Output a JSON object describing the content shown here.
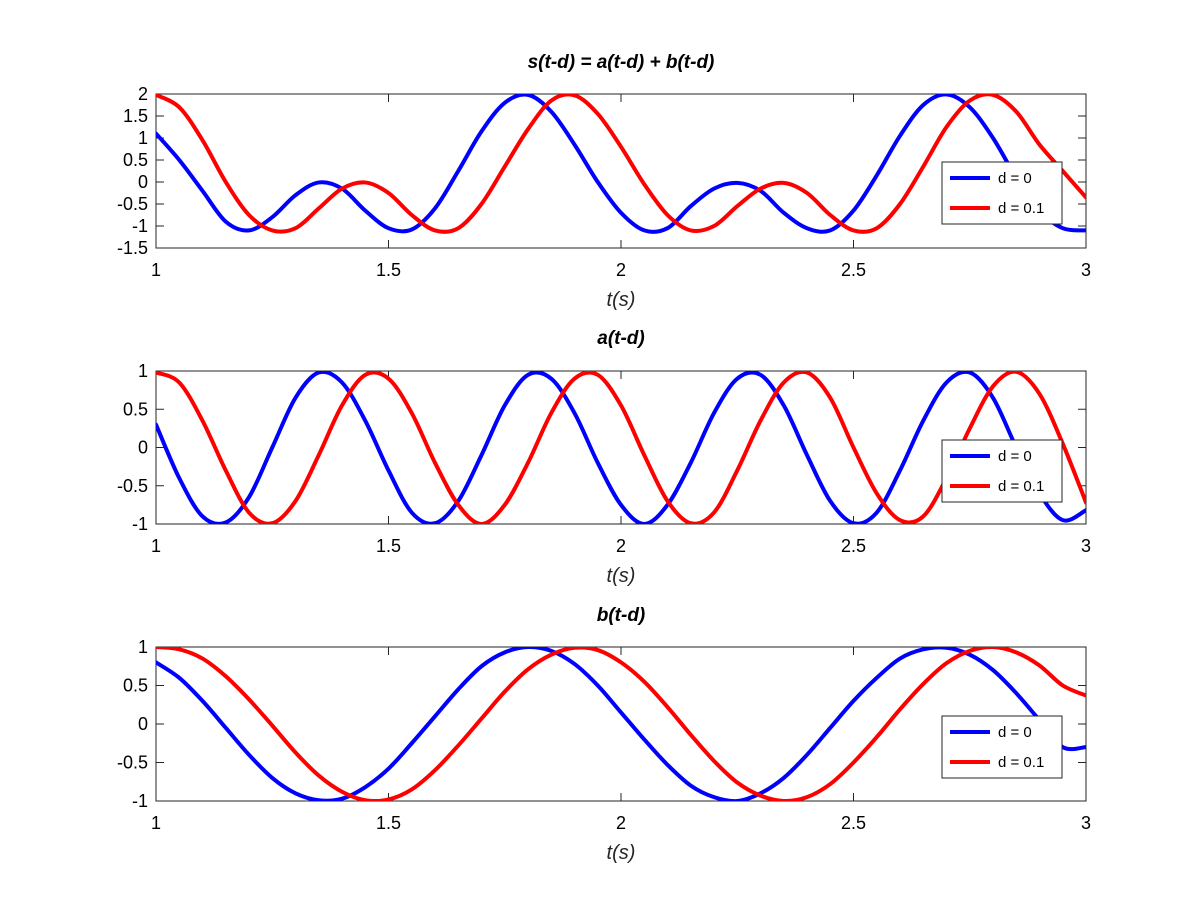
{
  "chart_data": [
    {
      "type": "line",
      "title": "s(t-d) = a(t-d) + b(t-d)",
      "xlabel": "t(s)",
      "ylabel": "",
      "xlim": [
        1,
        3
      ],
      "ylim": [
        -1.5,
        2
      ],
      "xticks": [
        1,
        1.5,
        2,
        2.5,
        3
      ],
      "xtick_labels": [
        "1",
        "1.5",
        "2",
        "2.5",
        "3"
      ],
      "yticks": [
        -1.5,
        -1,
        -0.5,
        0,
        0.5,
        1,
        1.5,
        2
      ],
      "ytick_labels": [
        "-1.5",
        "-1",
        "-0.5",
        "0",
        "0.5",
        "1",
        "1.5",
        "2"
      ],
      "legend_position": "right",
      "series": [
        {
          "name": "d = 0",
          "color": "#0000ff",
          "x": [
            1.0,
            1.05,
            1.1,
            1.15,
            1.2,
            1.25,
            1.3,
            1.35,
            1.4,
            1.45,
            1.5,
            1.55,
            1.6,
            1.65,
            1.7,
            1.75,
            1.8,
            1.85,
            1.9,
            1.95,
            2.0,
            2.05,
            2.1,
            2.15,
            2.2,
            2.25,
            2.3,
            2.35,
            2.4,
            2.45,
            2.5,
            2.55,
            2.6,
            2.65,
            2.7,
            2.75,
            2.8,
            2.85,
            2.9,
            2.95,
            3.0
          ],
          "y": [
            1.1,
            0.5,
            -0.2,
            -0.9,
            -1.1,
            -0.8,
            -0.3,
            -0.01,
            -0.15,
            -0.65,
            -1.05,
            -1.08,
            -0.6,
            0.25,
            1.15,
            1.8,
            1.98,
            1.6,
            0.85,
            0.0,
            -0.7,
            -1.1,
            -1.05,
            -0.55,
            -0.15,
            -0.02,
            -0.2,
            -0.7,
            -1.05,
            -1.1,
            -0.65,
            0.15,
            1.05,
            1.75,
            1.99,
            1.7,
            1.0,
            0.1,
            -0.65,
            -1.05,
            -1.1
          ]
        },
        {
          "name": "d = 0.1",
          "color": "#ff0000",
          "x": [
            1.0,
            1.05,
            1.1,
            1.15,
            1.2,
            1.25,
            1.3,
            1.35,
            1.4,
            1.45,
            1.5,
            1.55,
            1.6,
            1.65,
            1.7,
            1.75,
            1.8,
            1.85,
            1.9,
            1.95,
            2.0,
            2.05,
            2.1,
            2.15,
            2.2,
            2.25,
            2.3,
            2.35,
            2.4,
            2.45,
            2.5,
            2.55,
            2.6,
            2.65,
            2.7,
            2.75,
            2.8,
            2.85,
            2.9,
            2.95,
            3.0
          ],
          "y": [
            1.98,
            1.7,
            0.95,
            0.0,
            -0.75,
            -1.1,
            -1.05,
            -0.6,
            -0.15,
            -0.01,
            -0.25,
            -0.75,
            -1.1,
            -1.05,
            -0.5,
            0.35,
            1.2,
            1.85,
            1.97,
            1.55,
            0.8,
            -0.05,
            -0.75,
            -1.1,
            -1.0,
            -0.55,
            -0.15,
            -0.02,
            -0.25,
            -0.75,
            -1.1,
            -1.05,
            -0.5,
            0.35,
            1.25,
            1.85,
            1.98,
            1.6,
            0.85,
            0.25,
            -0.35
          ]
        }
      ]
    },
    {
      "type": "line",
      "title": "a(t-d)",
      "xlabel": "t(s)",
      "ylabel": "",
      "xlim": [
        1,
        3
      ],
      "ylim": [
        -1,
        1
      ],
      "xticks": [
        1,
        1.5,
        2,
        2.5,
        3
      ],
      "xtick_labels": [
        "1",
        "1.5",
        "2",
        "2.5",
        "3"
      ],
      "yticks": [
        -1,
        -0.5,
        0,
        0.5,
        1
      ],
      "ytick_labels": [
        "-1",
        "-0.5",
        "0",
        "0.5",
        "1"
      ],
      "legend_position": "right",
      "series": [
        {
          "name": "d = 0",
          "color": "#0000ff",
          "x": [
            1.0,
            1.05,
            1.1,
            1.15,
            1.2,
            1.25,
            1.3,
            1.35,
            1.4,
            1.45,
            1.5,
            1.55,
            1.6,
            1.65,
            1.7,
            1.75,
            1.8,
            1.85,
            1.9,
            1.95,
            2.0,
            2.05,
            2.1,
            2.15,
            2.2,
            2.25,
            2.3,
            2.35,
            2.4,
            2.45,
            2.5,
            2.55,
            2.6,
            2.65,
            2.7,
            2.75,
            2.8,
            2.85,
            2.9,
            2.95,
            3.0
          ],
          "y": [
            0.3,
            -0.4,
            -0.9,
            -0.98,
            -0.65,
            0.0,
            0.65,
            0.98,
            0.85,
            0.35,
            -0.3,
            -0.85,
            -0.99,
            -0.7,
            -0.1,
            0.55,
            0.95,
            0.9,
            0.45,
            -0.2,
            -0.75,
            -1.0,
            -0.75,
            -0.2,
            0.45,
            0.9,
            0.95,
            0.55,
            -0.1,
            -0.7,
            -0.99,
            -0.85,
            -0.3,
            0.35,
            0.85,
            0.98,
            0.65,
            0.0,
            -0.6,
            -0.95,
            -0.82
          ]
        },
        {
          "name": "d = 0.1",
          "color": "#ff0000",
          "x": [
            1.0,
            1.05,
            1.1,
            1.15,
            1.2,
            1.25,
            1.3,
            1.35,
            1.4,
            1.45,
            1.5,
            1.55,
            1.6,
            1.65,
            1.7,
            1.75,
            1.8,
            1.85,
            1.9,
            1.95,
            2.0,
            2.05,
            2.1,
            2.15,
            2.2,
            2.25,
            2.3,
            2.35,
            2.4,
            2.45,
            2.5,
            2.55,
            2.6,
            2.65,
            2.7,
            2.75,
            2.8,
            2.85,
            2.9,
            2.95,
            3.0
          ],
          "y": [
            0.98,
            0.85,
            0.35,
            -0.3,
            -0.85,
            -0.99,
            -0.7,
            -0.1,
            0.55,
            0.95,
            0.9,
            0.45,
            -0.2,
            -0.75,
            -1.0,
            -0.75,
            -0.2,
            0.45,
            0.9,
            0.95,
            0.55,
            -0.1,
            -0.7,
            -0.99,
            -0.85,
            -0.3,
            0.35,
            0.85,
            0.98,
            0.65,
            0.0,
            -0.6,
            -0.95,
            -0.9,
            -0.4,
            0.25,
            0.8,
            0.99,
            0.7,
            0.05,
            -0.72
          ]
        }
      ]
    },
    {
      "type": "line",
      "title": "b(t-d)",
      "xlabel": "t(s)",
      "ylabel": "",
      "xlim": [
        1,
        3
      ],
      "ylim": [
        -1,
        1
      ],
      "xticks": [
        1,
        1.5,
        2,
        2.5,
        3
      ],
      "xtick_labels": [
        "1",
        "1.5",
        "2",
        "2.5",
        "3"
      ],
      "yticks": [
        -1,
        -0.5,
        0,
        0.5,
        1
      ],
      "ytick_labels": [
        "-1",
        "-0.5",
        "0",
        "0.5",
        "1"
      ],
      "legend_position": "right",
      "series": [
        {
          "name": "d = 0",
          "color": "#0000ff",
          "x": [
            1.0,
            1.05,
            1.1,
            1.15,
            1.2,
            1.25,
            1.3,
            1.35,
            1.4,
            1.45,
            1.5,
            1.55,
            1.6,
            1.65,
            1.7,
            1.75,
            1.8,
            1.85,
            1.9,
            1.95,
            2.0,
            2.05,
            2.1,
            2.15,
            2.2,
            2.25,
            2.3,
            2.35,
            2.4,
            2.45,
            2.5,
            2.55,
            2.6,
            2.65,
            2.7,
            2.75,
            2.8,
            2.85,
            2.9,
            2.95,
            3.0
          ],
          "y": [
            0.8,
            0.6,
            0.3,
            -0.05,
            -0.4,
            -0.7,
            -0.9,
            -0.99,
            -0.97,
            -0.82,
            -0.58,
            -0.25,
            0.1,
            0.45,
            0.75,
            0.93,
            1.0,
            0.95,
            0.78,
            0.5,
            0.15,
            -0.2,
            -0.53,
            -0.8,
            -0.95,
            -1.0,
            -0.9,
            -0.7,
            -0.4,
            -0.05,
            0.3,
            0.6,
            0.85,
            0.97,
            0.99,
            0.9,
            0.7,
            0.4,
            0.05,
            -0.3,
            -0.3
          ]
        },
        {
          "name": "d = 0.1",
          "color": "#ff0000",
          "x": [
            1.0,
            1.05,
            1.1,
            1.15,
            1.2,
            1.25,
            1.3,
            1.35,
            1.4,
            1.45,
            1.5,
            1.55,
            1.6,
            1.65,
            1.7,
            1.75,
            1.8,
            1.85,
            1.9,
            1.95,
            2.0,
            2.05,
            2.1,
            2.15,
            2.2,
            2.25,
            2.3,
            2.35,
            2.4,
            2.45,
            2.5,
            2.55,
            2.6,
            2.65,
            2.7,
            2.75,
            2.8,
            2.85,
            2.9,
            2.95,
            3.0
          ],
          "y": [
            1.0,
            0.97,
            0.85,
            0.62,
            0.32,
            -0.02,
            -0.37,
            -0.67,
            -0.88,
            -0.99,
            -0.98,
            -0.85,
            -0.6,
            -0.28,
            0.07,
            0.42,
            0.71,
            0.9,
            0.99,
            0.96,
            0.8,
            0.55,
            0.22,
            -0.14,
            -0.48,
            -0.76,
            -0.93,
            -1.0,
            -0.95,
            -0.78,
            -0.5,
            -0.17,
            0.19,
            0.52,
            0.79,
            0.95,
            1.0,
            0.93,
            0.76,
            0.5,
            0.37
          ]
        }
      ]
    }
  ]
}
